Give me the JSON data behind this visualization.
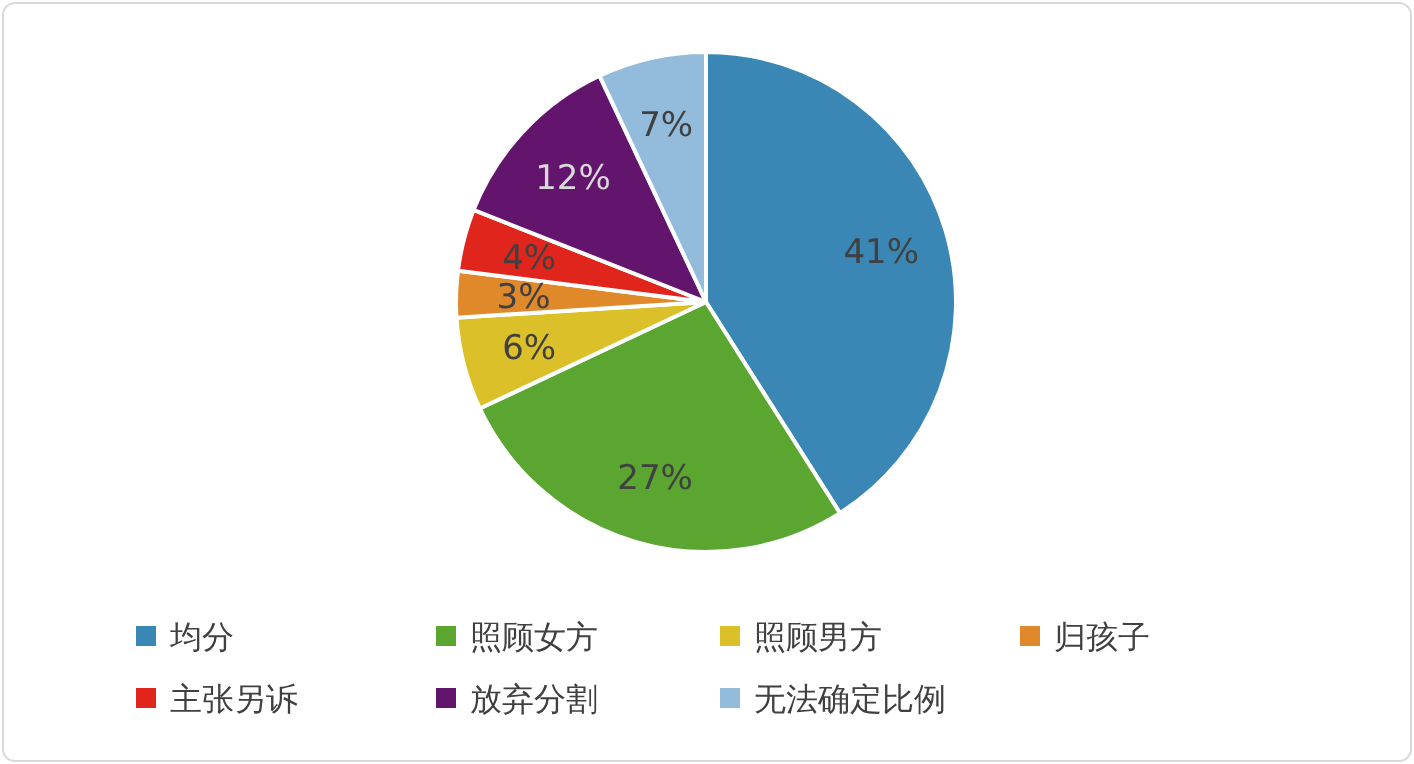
{
  "chart_data": {
    "type": "pie",
    "categories": [
      "均分",
      "照顾女方",
      "照顾男方",
      "归孩子",
      "主张另诉",
      "放弃分割",
      "无法确定比例"
    ],
    "values": [
      41,
      27,
      6,
      3,
      4,
      12,
      7
    ],
    "colors": [
      "#3a87b5",
      "#5aa631",
      "#dbc02a",
      "#e0892a",
      "#e0261c",
      "#63156e",
      "#93bcdc"
    ],
    "value_labels": [
      "41%",
      "27%",
      "6%",
      "3%",
      "4%",
      "12%",
      "7%"
    ],
    "legend": "bottom"
  }
}
